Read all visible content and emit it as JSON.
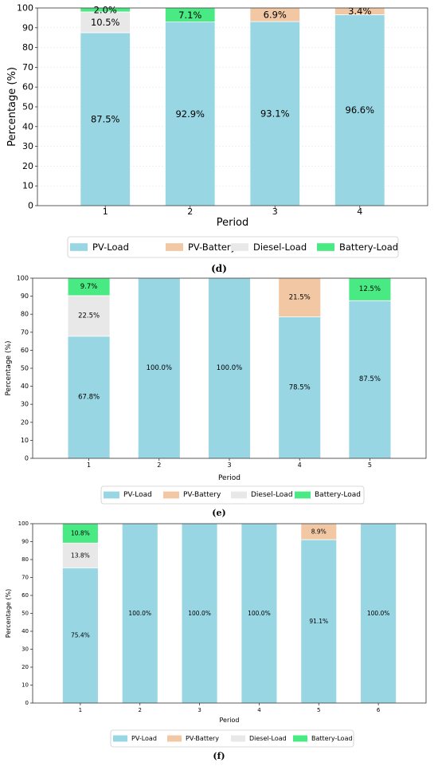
{
  "legend_labels": [
    "PV-Load",
    "PV-Battery",
    "Diesel-Load",
    "Battery-Load"
  ],
  "colors": {
    "PV-Load": "#98d6e4",
    "PV-Battery": "#f2c8a4",
    "Diesel-Load": "#e8e8e8",
    "Battery-Load": "#49ea83"
  },
  "chart_data": [
    {
      "type": "bar",
      "stacked": true,
      "panel_label": "(d)",
      "xlabel": "Period",
      "ylabel": "Percentage (%)",
      "ylim": [
        0,
        100
      ],
      "yticks": [
        0,
        10,
        20,
        30,
        40,
        50,
        60,
        70,
        80,
        90,
        100
      ],
      "grid": true,
      "legend_position": "bottom",
      "categories": [
        "1",
        "2",
        "3",
        "4"
      ],
      "series": [
        {
          "name": "PV-Load",
          "values": [
            87.5,
            92.9,
            93.1,
            96.6
          ],
          "labels": [
            "87.5%",
            "92.9%",
            "93.1%",
            "96.6%"
          ]
        },
        {
          "name": "PV-Battery",
          "values": [
            0,
            0,
            6.9,
            3.4
          ],
          "labels": [
            "",
            "",
            "6.9%",
            "3.4%"
          ]
        },
        {
          "name": "Diesel-Load",
          "values": [
            10.5,
            0,
            0,
            0
          ],
          "labels": [
            "10.5%",
            "",
            "",
            ""
          ]
        },
        {
          "name": "Battery-Load",
          "values": [
            2.0,
            7.1,
            0,
            0
          ],
          "labels": [
            "2.0%",
            "7.1%",
            "",
            ""
          ]
        }
      ]
    },
    {
      "type": "bar",
      "stacked": true,
      "panel_label": "(e)",
      "xlabel": "Period",
      "ylabel": "Percentage (%)",
      "ylim": [
        0,
        100
      ],
      "yticks": [
        0,
        10,
        20,
        30,
        40,
        50,
        60,
        70,
        80,
        90,
        100
      ],
      "grid": false,
      "legend_position": "bottom",
      "categories": [
        "1",
        "2",
        "3",
        "4",
        "5"
      ],
      "series": [
        {
          "name": "PV-Load",
          "values": [
            67.8,
            100.0,
            100.0,
            78.5,
            87.5
          ],
          "labels": [
            "67.8%",
            "100.0%",
            "100.0%",
            "78.5%",
            "87.5%"
          ]
        },
        {
          "name": "PV-Battery",
          "values": [
            0,
            0,
            0,
            21.5,
            0
          ],
          "labels": [
            "",
            "",
            "",
            "21.5%",
            ""
          ]
        },
        {
          "name": "Diesel-Load",
          "values": [
            22.5,
            0,
            0,
            0,
            0
          ],
          "labels": [
            "22.5%",
            "",
            "",
            "",
            ""
          ]
        },
        {
          "name": "Battery-Load",
          "values": [
            9.7,
            0,
            0,
            0,
            12.5
          ],
          "labels": [
            "9.7%",
            "",
            "",
            "",
            "12.5%"
          ]
        }
      ]
    },
    {
      "type": "bar",
      "stacked": true,
      "panel_label": "(f)",
      "xlabel": "Period",
      "ylabel": "Percentage (%)",
      "ylim": [
        0,
        100
      ],
      "yticks": [
        0,
        10,
        20,
        30,
        40,
        50,
        60,
        70,
        80,
        90,
        100
      ],
      "grid": false,
      "legend_position": "bottom",
      "categories": [
        "1",
        "2",
        "3",
        "4",
        "5",
        "6"
      ],
      "series": [
        {
          "name": "PV-Load",
          "values": [
            75.4,
            100.0,
            100.0,
            100.0,
            91.1,
            100.0
          ],
          "labels": [
            "75.4%",
            "100.0%",
            "100.0%",
            "100.0%",
            "91.1%",
            "100.0%"
          ]
        },
        {
          "name": "PV-Battery",
          "values": [
            0,
            0,
            0,
            0,
            8.9,
            0
          ],
          "labels": [
            "",
            "",
            "",
            "",
            "8.9%",
            ""
          ]
        },
        {
          "name": "Diesel-Load",
          "values": [
            13.8,
            0,
            0,
            0,
            0,
            0
          ],
          "labels": [
            "13.8%",
            "",
            "",
            "",
            "",
            ""
          ]
        },
        {
          "name": "Battery-Load",
          "values": [
            10.8,
            0,
            0,
            0,
            0,
            0
          ],
          "labels": [
            "10.8%",
            "",
            "",
            "",
            "",
            ""
          ]
        }
      ]
    }
  ]
}
